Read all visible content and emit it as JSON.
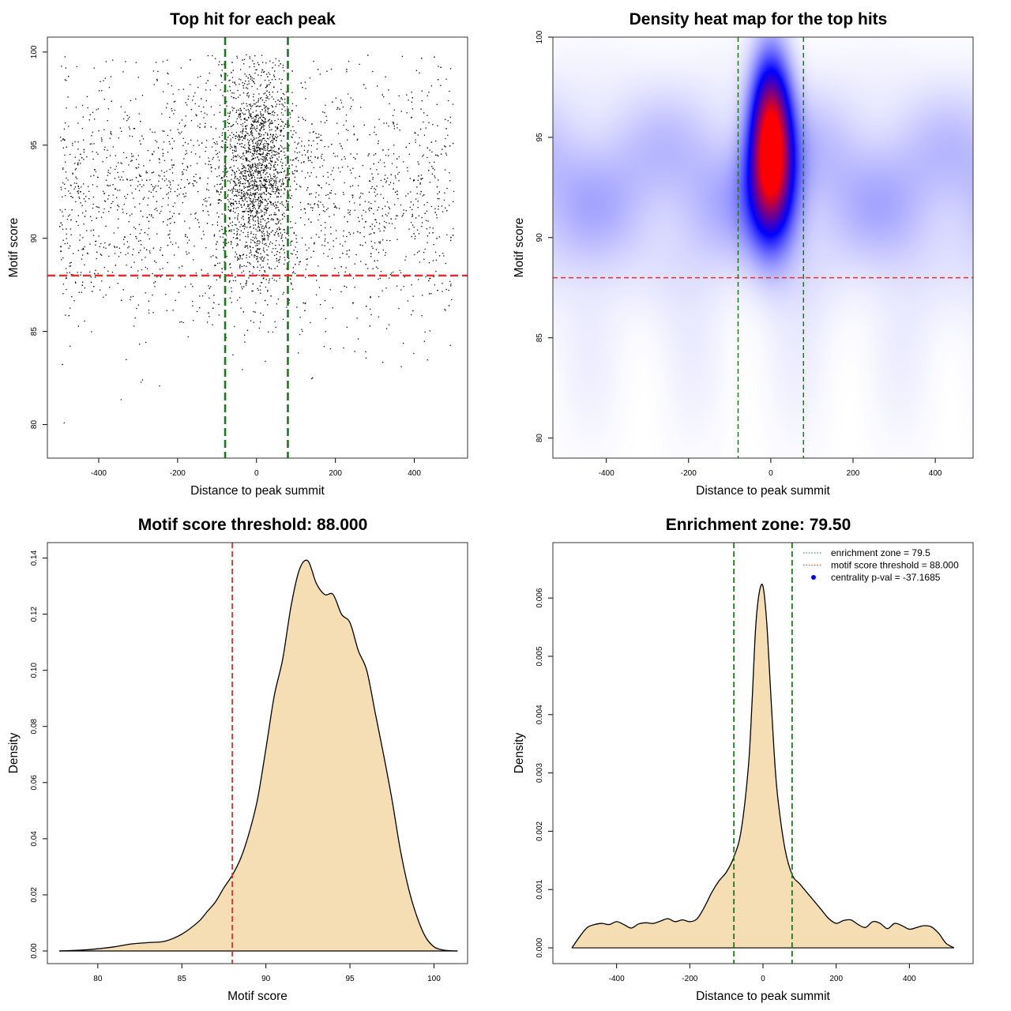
{
  "chart_data": [
    {
      "id": "scatter",
      "type": "scatter",
      "title": "Top hit for each peak",
      "xlabel": "Distance to peak summit",
      "ylabel": "Motif score",
      "xlim": [
        -530,
        535
      ],
      "ylim": [
        78.2,
        100.8
      ],
      "xticks": [
        -400,
        -200,
        0,
        200,
        400
      ],
      "yticks": [
        80,
        85,
        90,
        95,
        100
      ],
      "hlines": [
        {
          "y": 88,
          "color": "#e03030",
          "style": "dashed"
        }
      ],
      "vlines": [
        {
          "x": -79.5,
          "color": "#1a7a1a",
          "style": "dashed"
        },
        {
          "x": 79.5,
          "color": "#1a7a1a",
          "style": "dashed"
        }
      ],
      "point_color": "#000000",
      "n_points": 4200,
      "distribution": {
        "center_sd_x": 45,
        "center_mean_y": 93.5,
        "center_sd_y": 2.8,
        "background_x_range": [
          -500,
          500
        ],
        "background_mean_y": 92.3,
        "background_sd_y": 3.5
      }
    },
    {
      "id": "heatmap",
      "type": "heatmap",
      "title": "Density heat map for the top hits",
      "xlabel": "Distance to peak summit",
      "ylabel": "Motif score",
      "xlim": [
        -530,
        492
      ],
      "ylim": [
        79.0,
        100.0
      ],
      "xticks": [
        -400,
        -200,
        0,
        200,
        400
      ],
      "yticks": [
        80,
        85,
        90,
        95,
        100
      ],
      "hlines": [
        {
          "y": 88,
          "color": "#e03030",
          "style": "dashed"
        }
      ],
      "vlines": [
        {
          "x": -79.5,
          "color": "#1a7a1a",
          "style": "dashed"
        },
        {
          "x": 79.5,
          "color": "#1a7a1a",
          "style": "dashed"
        }
      ],
      "colors": [
        "#ffffff",
        "#0000ff",
        "#ff0000"
      ],
      "peak": {
        "x": 0,
        "y": 95.0
      }
    },
    {
      "id": "score_density",
      "type": "area",
      "title": "Motif score threshold: 88.000",
      "xlabel": "Motif score",
      "ylabel": "Density",
      "xlim": [
        77.0,
        102.0
      ],
      "ylim": [
        -0.0045,
        0.1455
      ],
      "xticks": [
        80,
        85,
        90,
        95,
        100
      ],
      "yticks": [
        0.0,
        0.02,
        0.04,
        0.06,
        0.08,
        0.1,
        0.12,
        0.14
      ],
      "ytick_labels": [
        "0.00",
        "0.02",
        "0.04",
        "0.06",
        "0.08",
        "0.10",
        "0.12",
        "0.14"
      ],
      "vlines": [
        {
          "x": 88,
          "color": "#e03030",
          "style": "dashed"
        }
      ],
      "fill": "#f5deb3",
      "x": [
        77.7,
        79.0,
        80.0,
        81.0,
        82.0,
        83.0,
        84.0,
        85.0,
        86.0,
        86.5,
        87.0,
        87.5,
        88.0,
        88.5,
        89.0,
        89.5,
        90.0,
        90.5,
        91.0,
        91.5,
        92.0,
        92.5,
        93.0,
        93.5,
        94.0,
        94.5,
        95.0,
        95.5,
        96.0,
        96.5,
        97.0,
        97.5,
        98.0,
        98.5,
        99.0,
        99.5,
        100.0,
        100.5,
        101.0,
        101.4
      ],
      "y": [
        0.0,
        0.0003,
        0.0008,
        0.0015,
        0.0025,
        0.003,
        0.0035,
        0.006,
        0.0105,
        0.014,
        0.0175,
        0.0225,
        0.027,
        0.033,
        0.042,
        0.054,
        0.072,
        0.091,
        0.104,
        0.123,
        0.136,
        0.139,
        0.131,
        0.127,
        0.127,
        0.12,
        0.117,
        0.107,
        0.1,
        0.085,
        0.07,
        0.054,
        0.036,
        0.022,
        0.012,
        0.005,
        0.0015,
        0.0004,
        0.0001,
        0.0
      ]
    },
    {
      "id": "distance_density",
      "type": "area",
      "title": "Enrichment zone: 79.50",
      "xlabel": "Distance to peak summit",
      "ylabel": "Density",
      "xlim": [
        -574,
        574
      ],
      "ylim": [
        -0.00027,
        0.00695
      ],
      "xticks": [
        -400,
        -200,
        0,
        200,
        400
      ],
      "yticks": [
        0.0,
        0.001,
        0.002,
        0.003,
        0.004,
        0.005,
        0.006
      ],
      "ytick_labels": [
        "0.000",
        "0.001",
        "0.002",
        "0.003",
        "0.004",
        "0.005",
        "0.006"
      ],
      "vlines": [
        {
          "x": -79.5,
          "color": "#1a7a1a",
          "style": "dashed"
        },
        {
          "x": 79.5,
          "color": "#1a7a1a",
          "style": "dashed"
        }
      ],
      "fill": "#f5deb3",
      "x": [
        -522,
        -500,
        -480,
        -460,
        -440,
        -420,
        -400,
        -380,
        -360,
        -340,
        -320,
        -300,
        -280,
        -260,
        -240,
        -220,
        -200,
        -180,
        -160,
        -140,
        -120,
        -100,
        -80,
        -60,
        -40,
        -30,
        -20,
        -10,
        0,
        10,
        20,
        30,
        40,
        60,
        80,
        100,
        120,
        140,
        160,
        180,
        200,
        220,
        240,
        260,
        280,
        300,
        320,
        340,
        360,
        380,
        400,
        420,
        440,
        460,
        480,
        500,
        522
      ],
      "y": [
        0.0,
        0.0002,
        0.00035,
        0.0004,
        0.00042,
        0.0004,
        0.00045,
        0.0004,
        0.00034,
        0.00041,
        0.00043,
        0.00042,
        0.00046,
        0.0005,
        0.00045,
        0.00048,
        0.00045,
        0.0005,
        0.0007,
        0.00095,
        0.00115,
        0.0013,
        0.00155,
        0.002,
        0.0031,
        0.0042,
        0.0055,
        0.0061,
        0.0062,
        0.0056,
        0.0045,
        0.0034,
        0.0026,
        0.0017,
        0.00125,
        0.0011,
        0.00095,
        0.0008,
        0.00065,
        0.0005,
        0.00042,
        0.00047,
        0.00048,
        0.0004,
        0.00035,
        0.00045,
        0.00042,
        0.00033,
        0.00042,
        0.00038,
        0.00032,
        0.00035,
        0.00038,
        0.00036,
        0.00025,
        8e-05,
        0.0
      ]
    }
  ],
  "legend": {
    "items": [
      {
        "label": "enrichment zone = 79.5",
        "color": "#1a7a1a",
        "kind": "dotted-line"
      },
      {
        "label": "motif score threshold = 88.000",
        "color": "#e03030",
        "kind": "dotted-line"
      },
      {
        "label": "centrality p-val = -37.1685",
        "color": "#0000ee",
        "kind": "dot"
      }
    ]
  }
}
